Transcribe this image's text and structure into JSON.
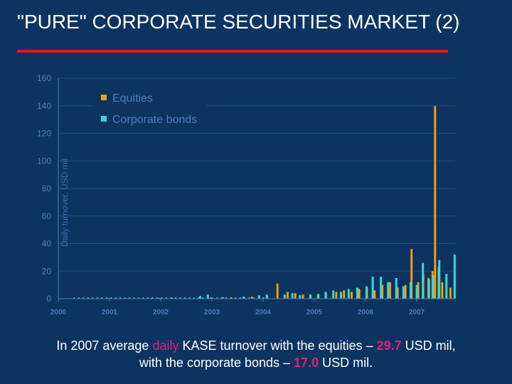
{
  "slide": {
    "title": "\"PURE\" CORPORATE SECURITIES MARKET (2)",
    "accent_color": "#e8131f",
    "background_color": "#0d3461"
  },
  "caption": {
    "part1": "In 2007 average ",
    "daily": "daily",
    "part2": " KASE turnover with the equities – ",
    "equities_value": "29.7",
    "part3": " USD mil,",
    "part4": "with the corporate bonds – ",
    "bonds_value": "17.0",
    "part5": " USD mil."
  },
  "chart_data": {
    "type": "bar",
    "ylabel": "Daily turnover, USD mil",
    "xlabel": "",
    "ylim": [
      0,
      160
    ],
    "yticks": [
      "0",
      "20",
      "40",
      "60",
      "80",
      "100",
      "120",
      "140",
      "160"
    ],
    "xticks": [
      "2000",
      "2001",
      "2002",
      "2003",
      "2004",
      "2005",
      "2006",
      "2007"
    ],
    "xlim": [
      2000,
      2007.75
    ],
    "grid": true,
    "legend_position": "top-left",
    "series": [
      {
        "name": "Equities",
        "color": "#f4a214",
        "points": [
          {
            "x": 2000.5,
            "y": 0.3
          },
          {
            "x": 2001.0,
            "y": 0.5
          },
          {
            "x": 2001.5,
            "y": 0.4
          },
          {
            "x": 2002.0,
            "y": 0.6
          },
          {
            "x": 2002.5,
            "y": 0.5
          },
          {
            "x": 2003.0,
            "y": 0.8
          },
          {
            "x": 2003.4,
            "y": 1.0
          },
          {
            "x": 2003.8,
            "y": 1.5
          },
          {
            "x": 2004.1,
            "y": 2.0
          },
          {
            "x": 2004.3,
            "y": 11.0
          },
          {
            "x": 2004.5,
            "y": 5.0
          },
          {
            "x": 2004.65,
            "y": 4.0
          },
          {
            "x": 2004.8,
            "y": 3.0
          },
          {
            "x": 2004.95,
            "y": 2.5
          },
          {
            "x": 2005.1,
            "y": 3.5
          },
          {
            "x": 2005.25,
            "y": 4.0
          },
          {
            "x": 2005.45,
            "y": 5.0
          },
          {
            "x": 2005.6,
            "y": 6.0
          },
          {
            "x": 2005.75,
            "y": 5.0
          },
          {
            "x": 2005.9,
            "y": 7.0
          },
          {
            "x": 2006.05,
            "y": 8.0
          },
          {
            "x": 2006.2,
            "y": 6.0
          },
          {
            "x": 2006.35,
            "y": 10.0
          },
          {
            "x": 2006.5,
            "y": 12.0
          },
          {
            "x": 2006.65,
            "y": 8.0
          },
          {
            "x": 2006.8,
            "y": 10.0
          },
          {
            "x": 2006.92,
            "y": 36.0
          },
          {
            "x": 2007.05,
            "y": 12.0
          },
          {
            "x": 2007.15,
            "y": 18.0
          },
          {
            "x": 2007.25,
            "y": 15.0
          },
          {
            "x": 2007.33,
            "y": 20.0
          },
          {
            "x": 2007.38,
            "y": 140.0
          },
          {
            "x": 2007.45,
            "y": 23.0
          },
          {
            "x": 2007.52,
            "y": 12.0
          },
          {
            "x": 2007.6,
            "y": 10.0
          },
          {
            "x": 2007.68,
            "y": 8.0
          }
        ]
      },
      {
        "name": "Corporate bonds",
        "color": "#3cd5d5",
        "points": [
          {
            "x": 2000.8,
            "y": 0.3
          },
          {
            "x": 2001.3,
            "y": 0.4
          },
          {
            "x": 2001.8,
            "y": 0.5
          },
          {
            "x": 2002.2,
            "y": 0.6
          },
          {
            "x": 2002.75,
            "y": 2.0
          },
          {
            "x": 2002.9,
            "y": 3.0
          },
          {
            "x": 2003.2,
            "y": 1.0
          },
          {
            "x": 2003.6,
            "y": 1.5
          },
          {
            "x": 2003.9,
            "y": 2.5
          },
          {
            "x": 2004.05,
            "y": 3.0
          },
          {
            "x": 2004.4,
            "y": 3.0
          },
          {
            "x": 2004.55,
            "y": 4.0
          },
          {
            "x": 2004.7,
            "y": 2.5
          },
          {
            "x": 2004.9,
            "y": 3.0
          },
          {
            "x": 2005.05,
            "y": 3.0
          },
          {
            "x": 2005.2,
            "y": 5.0
          },
          {
            "x": 2005.35,
            "y": 6.0
          },
          {
            "x": 2005.5,
            "y": 5.0
          },
          {
            "x": 2005.65,
            "y": 7.0
          },
          {
            "x": 2005.82,
            "y": 8.0
          },
          {
            "x": 2006.0,
            "y": 9.0
          },
          {
            "x": 2006.12,
            "y": 16.0
          },
          {
            "x": 2006.28,
            "y": 16.0
          },
          {
            "x": 2006.42,
            "y": 12.0
          },
          {
            "x": 2006.58,
            "y": 15.0
          },
          {
            "x": 2006.72,
            "y": 9.0
          },
          {
            "x": 2006.86,
            "y": 12.0
          },
          {
            "x": 2006.98,
            "y": 10.0
          },
          {
            "x": 2007.1,
            "y": 26.0
          },
          {
            "x": 2007.22,
            "y": 14.0
          },
          {
            "x": 2007.3,
            "y": 17.0
          },
          {
            "x": 2007.42,
            "y": 28.0
          },
          {
            "x": 2007.56,
            "y": 18.0
          },
          {
            "x": 2007.72,
            "y": 32.0
          }
        ]
      }
    ]
  }
}
